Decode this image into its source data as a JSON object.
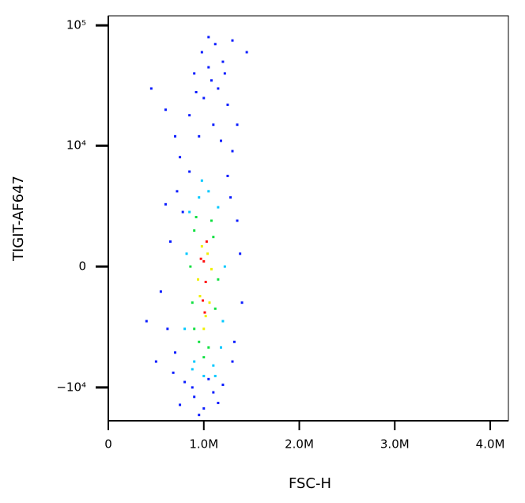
{
  "chart_data": {
    "type": "scatter",
    "x_label": "FSC-H",
    "y_label": "TIGIT-AF647",
    "yscale": "biexponential",
    "xlim": [
      0,
      4190000
    ],
    "ylim": [
      -19000,
      120000
    ],
    "xticks": [
      0,
      {
        "value": 1000000,
        "label": "1.0M"
      },
      {
        "value": 2000000,
        "label": "2.0M"
      },
      {
        "value": 3000000,
        "label": "3.0M"
      },
      {
        "value": 4000000,
        "label": "4.0M"
      }
    ],
    "yticks": [
      {
        "value": 100000,
        "label": "10⁵"
      },
      {
        "value": 10000,
        "label": "10⁴"
      },
      0,
      {
        "value": -10000,
        "label": "−10⁴"
      }
    ],
    "series": [
      {
        "color": "#0a1cff",
        "x": [
          1050000,
          980000,
          1120000,
          1200000,
          1300000,
          900000,
          1080000,
          1150000,
          1000000,
          1250000,
          850000,
          1100000,
          950000,
          1180000,
          1300000,
          750000,
          600000,
          450000,
          1450000,
          700000,
          1050000,
          920000,
          1220000,
          1350000,
          600000,
          550000,
          400000,
          700000,
          650000,
          1350000,
          1400000,
          1300000,
          800000,
          900000,
          1100000,
          1200000,
          850000,
          1250000,
          500000,
          750000,
          1000000,
          1150000,
          1320000,
          680000,
          720000,
          1280000,
          950000,
          1050000,
          880000,
          780000,
          1380000,
          620000
        ],
        "values": [
          80000,
          60000,
          70000,
          50000,
          75000,
          40000,
          35000,
          30000,
          25000,
          22000,
          18000,
          15000,
          12000,
          11000,
          9000,
          8000,
          20000,
          30000,
          60000,
          12000,
          45000,
          28000,
          40000,
          15000,
          3000,
          -1000,
          -2500,
          -5000,
          1000,
          2000,
          -1500,
          -6000,
          -9000,
          -12000,
          -11000,
          -9500,
          6000,
          5500,
          -6000,
          -14000,
          -15000,
          -13500,
          -4000,
          -7500,
          4000,
          3500,
          -17000,
          -8500,
          -10000,
          2500,
          500,
          -3000
        ]
      },
      {
        "color": "#00c8ff",
        "x": [
          850000,
          1150000,
          800000,
          1200000,
          900000,
          1100000,
          1000000,
          820000,
          1220000,
          950000,
          1050000,
          1180000,
          880000,
          1120000,
          980000
        ],
        "values": [
          2500,
          2800,
          -3000,
          -2500,
          -6000,
          -6500,
          -8000,
          500,
          0,
          3500,
          4000,
          -4500,
          -7000,
          -8000,
          5000
        ]
      },
      {
        "color": "#10e040",
        "x": [
          900000,
          1100000,
          880000,
          1120000,
          950000,
          1050000,
          1000000,
          920000,
          1080000,
          900000,
          1150000,
          860000
        ],
        "values": [
          1500,
          1200,
          -1500,
          -1800,
          -4000,
          -4500,
          -5500,
          2200,
          2000,
          -3000,
          -500,
          0
        ]
      },
      {
        "color": "#f0f000",
        "x": [
          980000,
          1040000,
          960000,
          1060000,
          1000000,
          1020000,
          940000,
          1080000
        ],
        "values": [
          800,
          500,
          -1200,
          -1500,
          -3000,
          -2200,
          -500,
          -100
        ]
      },
      {
        "color": "#ff1010",
        "x": [
          1000000,
          1020000,
          990000,
          1030000,
          1010000,
          970000
        ],
        "values": [
          200,
          -600,
          -1400,
          1000,
          -2000,
          300
        ]
      }
    ]
  }
}
